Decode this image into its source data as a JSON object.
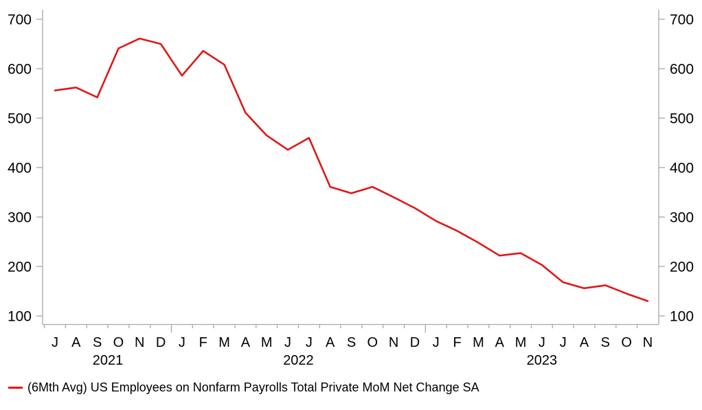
{
  "chart_data": {
    "type": "line",
    "title": "",
    "legend": "(6Mth Avg) US Employees on Nonfarm Payrolls Total Private MoM Net Change SA",
    "x_tick_labels": [
      "J",
      "A",
      "S",
      "O",
      "N",
      "D",
      "J",
      "F",
      "M",
      "A",
      "M",
      "J",
      "J",
      "A",
      "S",
      "O",
      "N",
      "D",
      "J",
      "F",
      "M",
      "A",
      "M",
      "J",
      "J",
      "A",
      "S",
      "O",
      "N"
    ],
    "year_groups": [
      {
        "label": "2021",
        "start": 0,
        "end": 5
      },
      {
        "label": "2022",
        "start": 6,
        "end": 17
      },
      {
        "label": "2023",
        "start": 18,
        "end": 28
      }
    ],
    "series": [
      {
        "name": "(6Mth Avg) US Employees on Nonfarm Payrolls Total Private MoM Net Change SA",
        "color": "#e01717",
        "values": [
          556,
          562,
          542,
          641,
          661,
          650,
          586,
          636,
          608,
          511,
          465,
          436,
          460,
          361,
          348,
          361,
          340,
          318,
          292,
          272,
          248,
          222,
          227,
          203,
          168,
          156,
          162,
          145,
          130
        ]
      }
    ],
    "y_ticks": [
      700,
      600,
      500,
      400,
      300,
      200,
      100
    ],
    "ylim": [
      100,
      700
    ],
    "grid": false,
    "legend_position": "bottom-left",
    "axes": {
      "left": true,
      "right": true,
      "bottom": true
    }
  },
  "colors": {
    "line": "#e01717",
    "axis": "#a8a8a8",
    "text": "#000000",
    "background": "#ffffff"
  }
}
